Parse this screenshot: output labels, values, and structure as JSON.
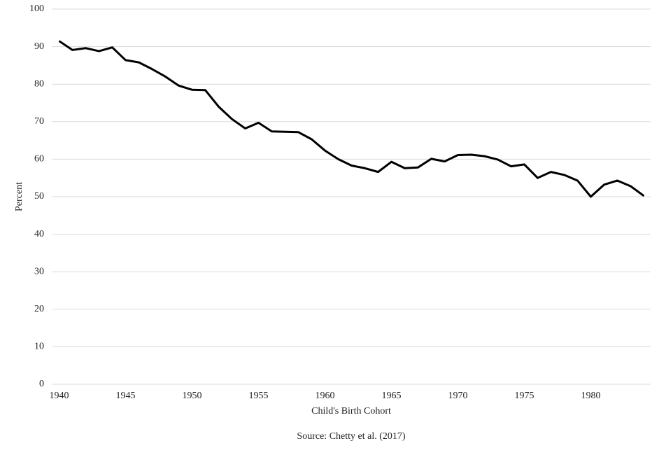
{
  "chart_data": {
    "type": "line",
    "x": [
      1940,
      1941,
      1942,
      1943,
      1944,
      1945,
      1946,
      1947,
      1948,
      1949,
      1950,
      1951,
      1952,
      1953,
      1954,
      1955,
      1956,
      1957,
      1958,
      1959,
      1960,
      1961,
      1962,
      1963,
      1964,
      1965,
      1966,
      1967,
      1968,
      1969,
      1970,
      1971,
      1972,
      1973,
      1974,
      1975,
      1976,
      1977,
      1978,
      1979,
      1980,
      1981,
      1982,
      1983,
      1984
    ],
    "values": [
      91.5,
      89.1,
      89.6,
      88.8,
      89.8,
      86.4,
      85.8,
      84.0,
      82.0,
      79.6,
      78.5,
      78.4,
      74.0,
      70.7,
      68.2,
      69.7,
      67.4,
      67.3,
      67.2,
      65.3,
      62.3,
      60.0,
      58.3,
      57.6,
      56.6,
      59.3,
      57.6,
      57.8,
      60.1,
      59.4,
      61.1,
      61.2,
      60.8,
      59.9,
      58.1,
      58.6,
      55.0,
      56.6,
      55.8,
      54.3,
      50.0,
      53.2,
      54.3,
      52.8,
      50.2
    ],
    "color": "#000000",
    "xlim": [
      1939.5,
      1984.5
    ],
    "xticks": [
      1940,
      1945,
      1950,
      1955,
      1960,
      1965,
      1970,
      1975,
      1980
    ],
    "ylim": [
      0,
      100
    ],
    "yticks": [
      0,
      10,
      20,
      30,
      40,
      50,
      60,
      70,
      80,
      90,
      100
    ],
    "grid": true,
    "xlabel": "Child's Birth Cohort",
    "ylabel": "Percent",
    "source": "Source: Chetty et al. (2017)"
  }
}
